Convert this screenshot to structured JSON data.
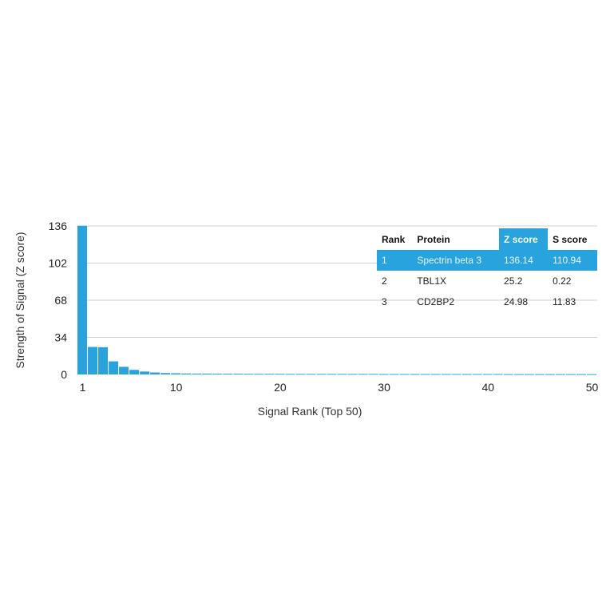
{
  "chart_data": {
    "type": "bar",
    "xlabel": "Signal Rank (Top 50)",
    "ylabel": "Strength of Signal (Z score)",
    "ylim": [
      0,
      136
    ],
    "yticks": [
      0,
      34,
      68,
      102,
      136
    ],
    "xticks": [
      1,
      10,
      20,
      30,
      40,
      50
    ],
    "grid": true,
    "bar_color": "#29a3dd",
    "x": [
      1,
      2,
      3,
      4,
      5,
      6,
      7,
      8,
      9,
      10,
      11,
      12,
      13,
      14,
      15,
      16,
      17,
      18,
      19,
      20,
      21,
      22,
      23,
      24,
      25,
      26,
      27,
      28,
      29,
      30,
      31,
      32,
      33,
      34,
      35,
      36,
      37,
      38,
      39,
      40,
      41,
      42,
      43,
      44,
      45,
      46,
      47,
      48,
      49,
      50
    ],
    "values": [
      136.14,
      25.2,
      24.98,
      12,
      7,
      4.2,
      2.7,
      1.8,
      1.3,
      1.1,
      0.9,
      0.8,
      0.8,
      0.7,
      0.7,
      0.7,
      0.6,
      0.6,
      0.6,
      0.6,
      0.5,
      0.5,
      0.5,
      0.5,
      0.5,
      0.5,
      0.5,
      0.5,
      0.5,
      0.4,
      0.4,
      0.4,
      0.4,
      0.4,
      0.4,
      0.4,
      0.4,
      0.4,
      0.4,
      0.4,
      0.4,
      0.3,
      0.3,
      0.3,
      0.3,
      0.3,
      0.3,
      0.3,
      0.3,
      0.3
    ]
  },
  "table": {
    "headers": [
      "Rank",
      "Protein",
      "Z score",
      "S score"
    ],
    "highlight_color": "#29a3dd",
    "rows": [
      [
        "1",
        "Spectrin beta 3",
        "136.14",
        "110.94"
      ],
      [
        "2",
        "TBL1X",
        "25.2",
        "0.22"
      ],
      [
        "3",
        "CD2BP2",
        "24.98",
        "11.83"
      ]
    ]
  }
}
